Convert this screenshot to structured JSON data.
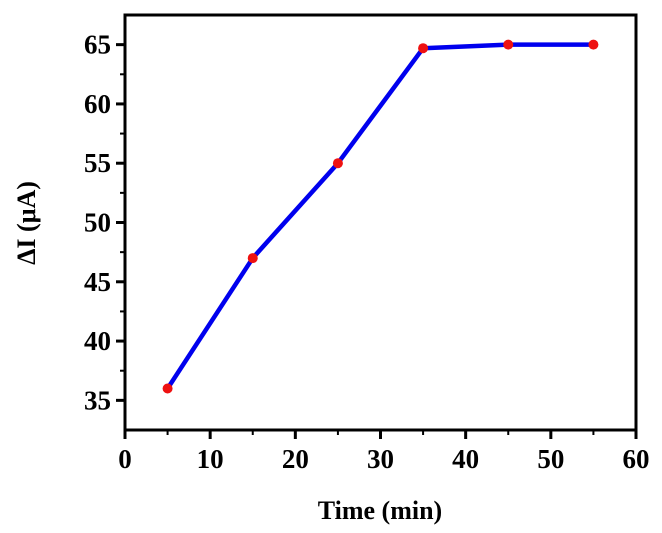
{
  "chart_data": {
    "type": "line",
    "title": "",
    "xlabel": "Time (min)",
    "ylabel": "ΔI (μA)",
    "xlim": [
      0,
      60
    ],
    "ylim": [
      32.5,
      67.5
    ],
    "x_ticks": [
      0,
      10,
      20,
      30,
      40,
      50,
      60
    ],
    "y_ticks": [
      35,
      40,
      45,
      50,
      55,
      60,
      65
    ],
    "grid": false,
    "legend": "none",
    "series": [
      {
        "x": [
          5,
          15,
          25,
          35,
          45,
          55
        ],
        "y": [
          36,
          47,
          55,
          64.7,
          65,
          65
        ],
        "line_color": "#0000ee",
        "marker_color": "#ee1111"
      }
    ]
  }
}
